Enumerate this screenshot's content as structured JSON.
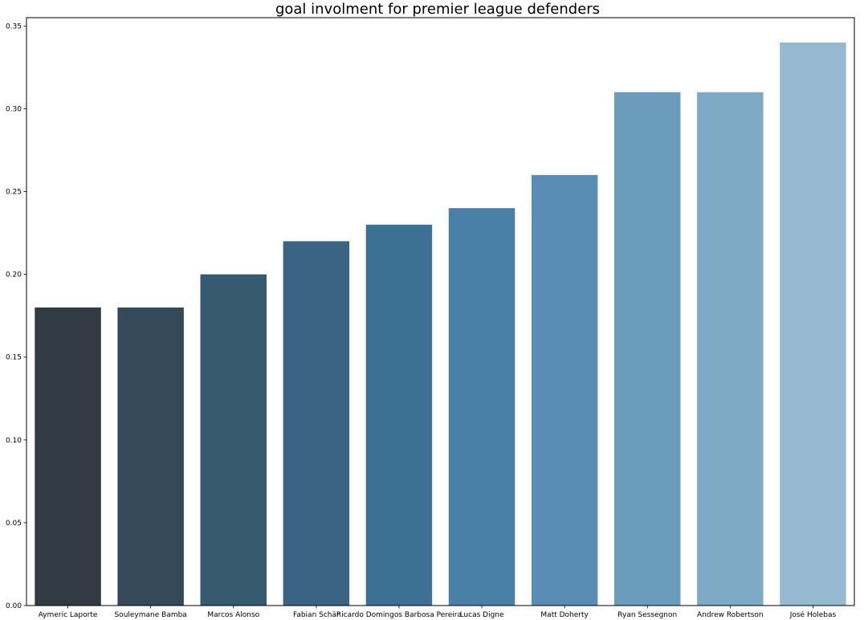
{
  "chart_data": {
    "type": "bar",
    "title": "goal involment for premier league defenders",
    "xlabel": "",
    "ylabel": "",
    "categories": [
      "Aymeric Laporte",
      "Souleymane Bamba",
      "Marcos Alonso",
      "Fabian Schär",
      "Ricardo Domingos Barbosa Pereira",
      "Lucas Digne",
      "Matt Doherty",
      "Ryan Sessegnon",
      "Andrew Robertson",
      "José Holebas"
    ],
    "values": [
      0.18,
      0.18,
      0.2,
      0.22,
      0.23,
      0.24,
      0.26,
      0.31,
      0.31,
      0.34
    ],
    "ylim": [
      0,
      0.355
    ],
    "yticks": [
      "0.00",
      "0.05",
      "0.10",
      "0.15",
      "0.20",
      "0.25",
      "0.30",
      "0.35"
    ],
    "grid": false,
    "legend": "none",
    "bar_colors": [
      "#323a43",
      "#344a5a",
      "#365a70",
      "#3b6384",
      "#3c7194",
      "#4980a8",
      "#5a8db3",
      "#6b9cbc",
      "#7faac6",
      "#95b9d0"
    ]
  }
}
